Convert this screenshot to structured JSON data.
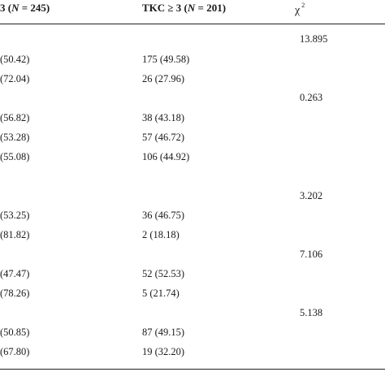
{
  "header": {
    "col1_prefix": "3 (",
    "col1_n_label": "N",
    "col1_suffix": " = 245)",
    "col2_prefix": "TKC ≥ 3 (",
    "col2_n_label": "N",
    "col2_suffix": " = 201)",
    "col3_label": "χ",
    "col3_sup": "2"
  },
  "groups": [
    {
      "chi_value": "13.895",
      "rows": [
        {
          "c1": "(50.42)",
          "c2": "175 (49.58)"
        },
        {
          "c1": "(72.04)",
          "c2": "26 (27.96)"
        }
      ]
    },
    {
      "chi_value": "0.263",
      "rows": [
        {
          "c1": "(56.82)",
          "c2": "38 (43.18)"
        },
        {
          "c1": "(53.28)",
          "c2": "57 (46.72)"
        },
        {
          "c1": "(55.08)",
          "c2": "106 (44.92)"
        }
      ]
    },
    {
      "chi_value": "3.202",
      "rows": [
        {
          "c1": "(53.25)",
          "c2": "36 (46.75)"
        },
        {
          "c1": "(81.82)",
          "c2": "2 (18.18)"
        }
      ]
    },
    {
      "chi_value": "7.106",
      "rows": [
        {
          "c1": "(47.47)",
          "c2": "52 (52.53)"
        },
        {
          "c1": "(78.26)",
          "c2": "5 (21.74)"
        }
      ]
    },
    {
      "chi_value": "5.138",
      "rows": [
        {
          "c1": "(50.85)",
          "c2": "87 (49.15)"
        },
        {
          "c1": "(67.80)",
          "c2": "19 (32.20)"
        }
      ]
    }
  ]
}
